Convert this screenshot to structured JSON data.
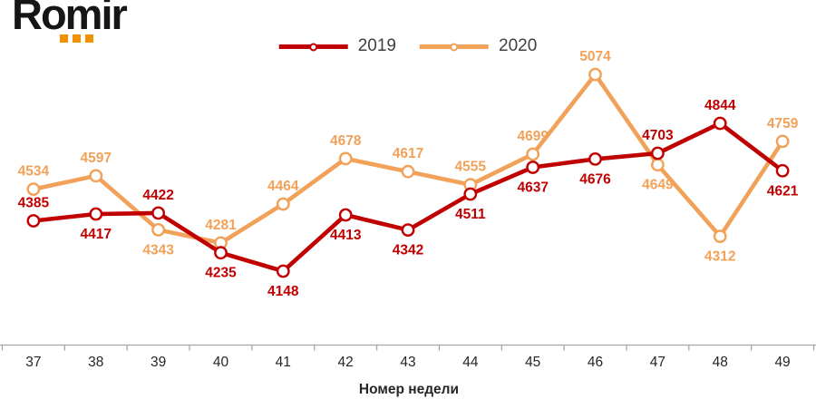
{
  "logo": {
    "text": "Romir",
    "dots_color": "#F29100",
    "dots_count": 3
  },
  "legend": [
    {
      "label": "2019",
      "color": "#C00000"
    },
    {
      "label": "2020",
      "color": "#F2A159"
    }
  ],
  "chart_data": {
    "type": "line",
    "x": [
      37,
      38,
      39,
      40,
      41,
      42,
      43,
      44,
      45,
      46,
      47,
      48,
      49
    ],
    "xlabel": "Номер недели",
    "ylim": [
      4050,
      5160
    ],
    "grid": false,
    "legend_position": "top",
    "axis_color": "#A6A6A6",
    "tick_label_color": "#262626",
    "series": [
      {
        "name": "2019",
        "color": "#C00000",
        "values": [
          4385,
          4417,
          4422,
          4235,
          4148,
          4413,
          4342,
          4511,
          4637,
          4676,
          4703,
          4844,
          4621
        ],
        "label_pos": [
          "above",
          "below",
          "above",
          "below",
          "below",
          "below",
          "below",
          "below",
          "below",
          "below",
          "above",
          "above",
          "below"
        ]
      },
      {
        "name": "2020",
        "color": "#F2A159",
        "values": [
          4534,
          4597,
          4343,
          4281,
          4464,
          4678,
          4617,
          4555,
          4699,
          5074,
          4649,
          4312,
          4759
        ],
        "label_pos": [
          "above",
          "above",
          "below",
          "above",
          "above",
          "above",
          "above",
          "above",
          "above",
          "above",
          "below",
          "below",
          "above"
        ]
      }
    ]
  }
}
